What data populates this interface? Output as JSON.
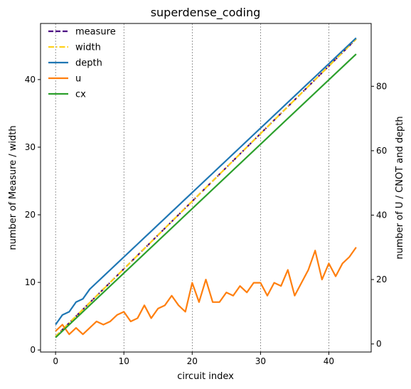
{
  "chart_data": {
    "type": "line",
    "title": "superdense_coding",
    "xlabel": "circuit index",
    "ylabel_left": "number of Measure / width",
    "ylabel_right": "number of U / CNOT and depth",
    "xlim": [
      -2.2,
      46.2
    ],
    "ylim_left": [
      -0.3,
      48.3
    ],
    "ylim_right": [
      -2.5,
      99.5
    ],
    "xticks": [
      0,
      10,
      20,
      30,
      40
    ],
    "yticks_left": [
      0,
      10,
      20,
      30,
      40
    ],
    "yticks_right": [
      0,
      20,
      40,
      60,
      80
    ],
    "grid": "vertical dashed at x ticks",
    "legend_position": "top-left",
    "series": [
      {
        "name": "measure",
        "axis": "left",
        "color": "#4b0082",
        "style": "dashed",
        "x": [
          0,
          44
        ],
        "y": [
          2,
          46
        ]
      },
      {
        "name": "width",
        "axis": "left",
        "color": "#ffd11a",
        "style": "dashdot",
        "x": [
          0,
          44
        ],
        "y": [
          2,
          46
        ]
      },
      {
        "name": "depth",
        "axis": "right",
        "color": "#1f77b4",
        "style": "solid",
        "x": [
          0,
          1,
          2,
          3,
          4,
          5,
          6,
          7,
          8,
          9,
          10,
          11,
          12,
          13,
          14,
          15,
          16,
          17,
          18,
          19,
          20,
          21,
          22,
          23,
          24,
          25,
          26,
          27,
          28,
          29,
          30,
          31,
          32,
          33,
          34,
          35,
          36,
          37,
          38,
          39,
          40,
          41,
          42,
          43,
          44
        ],
        "y": [
          6,
          9,
          10,
          13,
          14,
          17,
          19,
          21,
          23,
          25,
          27,
          29,
          31,
          33,
          35,
          37,
          39,
          41,
          43,
          45,
          47,
          49,
          51,
          53,
          55,
          57,
          59,
          61,
          63,
          65,
          67,
          69,
          71,
          73,
          75,
          77,
          79,
          81,
          83,
          85,
          87,
          89,
          91,
          93,
          95
        ]
      },
      {
        "name": "u",
        "axis": "right",
        "color": "#ff7f0e",
        "style": "solid",
        "x": [
          0,
          1,
          2,
          3,
          4,
          5,
          6,
          7,
          8,
          9,
          10,
          11,
          12,
          13,
          14,
          15,
          16,
          17,
          18,
          19,
          20,
          21,
          22,
          23,
          24,
          25,
          26,
          27,
          28,
          29,
          30,
          31,
          32,
          33,
          34,
          35,
          36,
          37,
          38,
          39,
          40,
          41,
          42,
          43,
          44
        ],
        "y": [
          4,
          6,
          3,
          5,
          3,
          5,
          7,
          6,
          7,
          9,
          10,
          7,
          8,
          12,
          8,
          11,
          12,
          15,
          12,
          10,
          19,
          13,
          20,
          13,
          13,
          16,
          15,
          18,
          16,
          19,
          19,
          15,
          19,
          18,
          23,
          15,
          19,
          23,
          29,
          20,
          25,
          21,
          25,
          27,
          30
        ]
      },
      {
        "name": "cx",
        "axis": "right",
        "color": "#2ca02c",
        "style": "solid",
        "x": [
          0,
          44
        ],
        "y": [
          2,
          90
        ]
      }
    ]
  }
}
